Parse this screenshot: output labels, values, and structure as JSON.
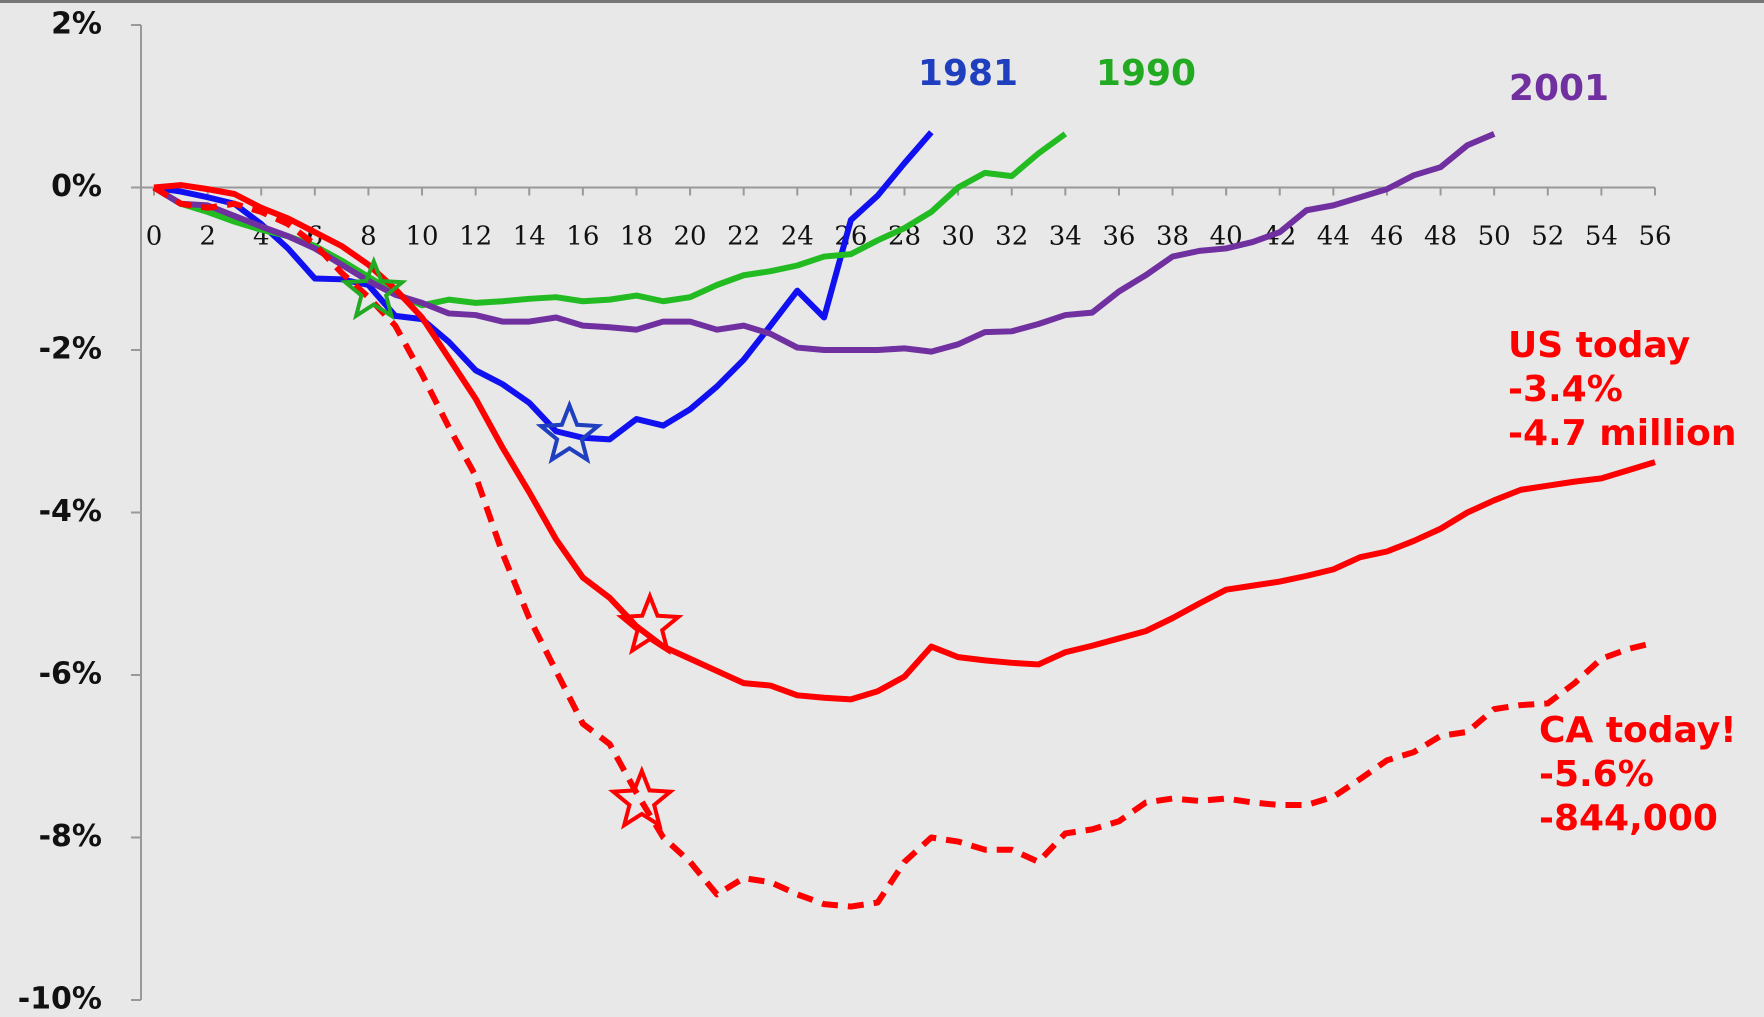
{
  "chart_data": {
    "type": "line",
    "x": [
      0,
      1,
      2,
      3,
      4,
      5,
      6,
      7,
      8,
      9,
      10,
      11,
      12,
      13,
      14,
      15,
      16,
      17,
      18,
      19,
      20,
      21,
      22,
      23,
      24,
      25,
      26,
      27,
      28,
      29,
      30,
      31,
      32,
      33,
      34,
      35,
      36,
      37,
      38,
      39,
      40,
      41,
      42,
      43,
      44,
      45,
      46,
      47,
      48,
      49,
      50,
      51,
      52,
      53,
      54,
      55,
      56
    ],
    "series": [
      {
        "name": "1981",
        "color": "#1010f0",
        "label_color": "#1f3fbf",
        "values": [
          0,
          -0.05,
          -0.12,
          -0.2,
          -0.45,
          -0.75,
          -1.12,
          -1.13,
          -1.2,
          -1.58,
          -1.62,
          -1.9,
          -2.25,
          -2.42,
          -2.65,
          -3.0,
          -3.08,
          -3.1,
          -2.85,
          -2.93,
          -2.73,
          -2.45,
          -2.12,
          -1.7,
          -1.27,
          -1.6,
          -0.4,
          -0.1,
          0.3,
          0.68,
          null,
          null,
          null,
          null,
          null,
          null,
          null,
          null,
          null,
          null,
          null,
          null,
          null,
          null,
          null,
          null,
          null,
          null,
          null,
          null,
          null,
          null,
          null,
          null,
          null,
          null,
          null
        ]
      },
      {
        "name": "1990",
        "color": "#22bb22",
        "label_color": "#22aa22",
        "values": [
          0,
          -0.2,
          -0.3,
          -0.42,
          -0.52,
          -0.6,
          -0.72,
          -0.9,
          -1.1,
          -1.3,
          -1.45,
          -1.38,
          -1.42,
          -1.4,
          -1.37,
          -1.35,
          -1.4,
          -1.38,
          -1.33,
          -1.4,
          -1.35,
          -1.2,
          -1.08,
          -1.03,
          -0.96,
          -0.85,
          -0.82,
          -0.65,
          -0.5,
          -0.3,
          0,
          0.18,
          0.14,
          0.42,
          0.66,
          null,
          null,
          null,
          null,
          null,
          null,
          null,
          null,
          null,
          null,
          null,
          null,
          null,
          null,
          null,
          null,
          null,
          null,
          null,
          null,
          null,
          null
        ]
      },
      {
        "name": "2001",
        "color": "#7030a0",
        "label_color": "#7030a0",
        "values": [
          0,
          -0.2,
          -0.22,
          -0.35,
          -0.48,
          -0.6,
          -0.75,
          -0.95,
          -1.15,
          -1.32,
          -1.42,
          -1.55,
          -1.57,
          -1.65,
          -1.65,
          -1.6,
          -1.7,
          -1.72,
          -1.75,
          -1.65,
          -1.65,
          -1.75,
          -1.7,
          -1.8,
          -1.97,
          -2.0,
          -2.0,
          -2.0,
          -1.98,
          -2.02,
          -1.93,
          -1.78,
          -1.77,
          -1.68,
          -1.57,
          -1.54,
          -1.28,
          -1.08,
          -0.85,
          -0.78,
          -0.75,
          -0.67,
          -0.55,
          -0.28,
          -0.22,
          -0.12,
          -0.02,
          0.15,
          0.25,
          0.52,
          0.66,
          null,
          null,
          null,
          null,
          null,
          null
        ]
      },
      {
        "name": "US today",
        "color": "#ff0000",
        "label_color": "#ff0000",
        "annotations": [
          "-3.4%",
          "-4.7 million"
        ],
        "values": [
          0,
          0.03,
          -0.02,
          -0.08,
          -0.25,
          -0.38,
          -0.55,
          -0.72,
          -0.95,
          -1.25,
          -1.6,
          -2.1,
          -2.6,
          -3.2,
          -3.75,
          -4.33,
          -4.8,
          -5.05,
          -5.4,
          -5.65,
          -5.8,
          -5.95,
          -6.1,
          -6.13,
          -6.25,
          -6.28,
          -6.3,
          -6.2,
          -6.02,
          -5.65,
          -5.78,
          -5.82,
          -5.85,
          -5.87,
          -5.72,
          -5.64,
          -5.55,
          -5.46,
          -5.3,
          -5.12,
          -4.95,
          -4.9,
          -4.85,
          -4.78,
          -4.7,
          -4.55,
          -4.48,
          -4.35,
          -4.2,
          -4.0,
          -3.85,
          -3.72,
          -3.67,
          -3.62,
          -3.58,
          -3.48,
          -3.38
        ]
      },
      {
        "name": "CA today!",
        "color": "#ff0000",
        "label_color": "#ff0000",
        "dashed": true,
        "annotations": [
          "-5.6%",
          "-844,000"
        ],
        "values": [
          0,
          -0.2,
          -0.25,
          -0.2,
          -0.3,
          -0.45,
          -0.7,
          -1.05,
          -1.35,
          -1.7,
          -2.3,
          -2.95,
          -3.55,
          -4.5,
          -5.3,
          -5.95,
          -6.6,
          -6.85,
          -7.45,
          -8.0,
          -8.3,
          -8.7,
          -8.5,
          -8.55,
          -8.7,
          -8.82,
          -8.85,
          -8.8,
          -8.3,
          -8.0,
          -8.05,
          -8.15,
          -8.15,
          -8.3,
          -7.95,
          -7.9,
          -7.8,
          -7.57,
          -7.52,
          -7.55,
          -7.52,
          -7.57,
          -7.6,
          -7.6,
          -7.5,
          -7.28,
          -7.05,
          -6.95,
          -6.75,
          -6.7,
          -6.42,
          -6.37,
          -6.35,
          -6.1,
          -5.8,
          -5.68,
          -5.6
        ]
      }
    ],
    "stars": [
      {
        "x": 15.5,
        "y": -3.05,
        "color": "#1f3fbf"
      },
      {
        "x": 8.2,
        "y": -1.28,
        "color": "#22aa22"
      },
      {
        "x": 18.5,
        "y": -5.4,
        "color": "#ff0000"
      },
      {
        "x": 18.2,
        "y": -7.55,
        "color": "#ff0000"
      }
    ],
    "xlim": [
      0,
      56
    ],
    "xticks": [
      0,
      2,
      4,
      6,
      8,
      10,
      12,
      14,
      16,
      18,
      20,
      22,
      24,
      26,
      28,
      30,
      32,
      34,
      36,
      38,
      40,
      42,
      44,
      46,
      48,
      50,
      52,
      54,
      56
    ],
    "ylim": [
      -10,
      2
    ],
    "yticks": [
      {
        "value": 2,
        "label": "2%"
      },
      {
        "value": 0,
        "label": "0%"
      },
      {
        "value": -2,
        "label": "-2%"
      },
      {
        "value": -4,
        "label": "-4%"
      },
      {
        "value": -6,
        "label": "-6%"
      },
      {
        "value": -8,
        "label": "-8%"
      },
      {
        "value": -10,
        "label": "-10%"
      }
    ]
  }
}
